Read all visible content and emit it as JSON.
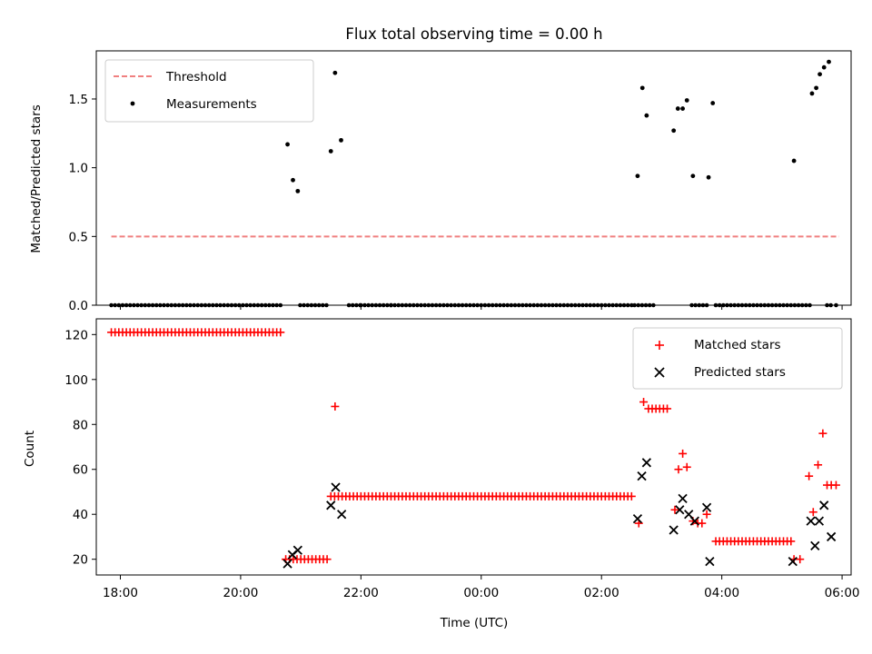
{
  "title": "Flux total observing time = 0.00 h",
  "colors": {
    "threshold": "#f08080",
    "measurements": "#000000",
    "matched": "#ff0000",
    "predicted": "#000000"
  },
  "chart_data": [
    {
      "type": "scatter",
      "ylabel": "Matched/Predicted stars",
      "ylim": [
        0,
        1.85
      ],
      "yticks": [
        0.0,
        0.5,
        1.0,
        1.5
      ],
      "xlim": [
        17.6,
        30.15
      ],
      "legend_position": "top-left",
      "threshold": {
        "name": "Threshold",
        "value": 0.5,
        "x": [
          17.85,
          29.95
        ]
      },
      "measurements": {
        "name": "Measurements",
        "zero_segments": [
          [
            17.85,
            20.7
          ],
          [
            20.99,
            21.45
          ],
          [
            21.8,
            22.0
          ],
          [
            22.0,
            22.5
          ],
          [
            22.5,
            26.5
          ],
          [
            26.55,
            26.9
          ],
          [
            27.5,
            27.75
          ],
          [
            27.9,
            29.5
          ],
          [
            29.75,
            29.85
          ],
          [
            29.9,
            29.95
          ]
        ],
        "points": [
          [
            20.78,
            1.17
          ],
          [
            20.87,
            0.91
          ],
          [
            20.95,
            0.83
          ],
          [
            21.5,
            1.12
          ],
          [
            21.57,
            1.69
          ],
          [
            21.67,
            1.2
          ],
          [
            26.6,
            0.94
          ],
          [
            26.68,
            1.58
          ],
          [
            26.75,
            1.38
          ],
          [
            27.2,
            1.27
          ],
          [
            27.27,
            1.43
          ],
          [
            27.35,
            1.43
          ],
          [
            27.42,
            1.49
          ],
          [
            27.52,
            0.94
          ],
          [
            27.78,
            0.93
          ],
          [
            27.85,
            1.47
          ],
          [
            29.2,
            1.05
          ],
          [
            29.5,
            1.54
          ],
          [
            29.57,
            1.58
          ],
          [
            29.63,
            1.68
          ],
          [
            29.7,
            1.73
          ],
          [
            29.78,
            1.77
          ]
        ]
      }
    },
    {
      "type": "scatter",
      "xlabel": "Time (UTC)",
      "ylabel": "Count",
      "ylim": [
        13,
        127
      ],
      "yticks": [
        20,
        40,
        60,
        80,
        100,
        120
      ],
      "xlim": [
        17.6,
        30.15
      ],
      "xtick_values": [
        18,
        20,
        22,
        24,
        26,
        28,
        30
      ],
      "xtick_labels": [
        "18:00",
        "20:00",
        "22:00",
        "00:00",
        "02:00",
        "04:00",
        "06:00"
      ],
      "legend_position": "top-right",
      "matched_runs": [
        {
          "from": 17.85,
          "to": 20.7,
          "y": 121
        },
        {
          "from": 20.75,
          "to": 21.45,
          "y": 20
        },
        {
          "from": 21.5,
          "to": 26.55,
          "y": 48
        },
        {
          "from": 26.78,
          "to": 27.15,
          "y": 87
        },
        {
          "from": 27.9,
          "to": 29.15,
          "y": 28
        }
      ],
      "matched": {
        "name": "Matched stars",
        "points": [
          [
            21.57,
            88
          ],
          [
            26.62,
            36
          ],
          [
            26.7,
            90
          ],
          [
            27.22,
            42
          ],
          [
            27.28,
            60
          ],
          [
            27.35,
            67
          ],
          [
            27.42,
            61
          ],
          [
            27.52,
            37
          ],
          [
            27.6,
            36
          ],
          [
            27.67,
            36
          ],
          [
            27.75,
            40
          ],
          [
            29.2,
            20
          ],
          [
            29.3,
            20
          ],
          [
            29.45,
            57
          ],
          [
            29.52,
            41
          ],
          [
            29.6,
            62
          ],
          [
            29.68,
            76
          ],
          [
            29.75,
            53
          ],
          [
            29.82,
            53
          ],
          [
            29.9,
            53
          ]
        ]
      },
      "predicted": {
        "name": "Predicted stars",
        "points": [
          [
            20.78,
            18
          ],
          [
            20.86,
            22
          ],
          [
            20.95,
            24
          ],
          [
            21.5,
            44
          ],
          [
            21.58,
            52
          ],
          [
            21.68,
            40
          ],
          [
            26.6,
            38
          ],
          [
            26.67,
            57
          ],
          [
            26.75,
            63
          ],
          [
            27.2,
            33
          ],
          [
            27.3,
            42
          ],
          [
            27.35,
            47
          ],
          [
            27.45,
            40
          ],
          [
            27.55,
            37
          ],
          [
            27.75,
            43
          ],
          [
            27.8,
            19
          ],
          [
            29.18,
            19
          ],
          [
            29.48,
            37
          ],
          [
            29.55,
            26
          ],
          [
            29.62,
            37
          ],
          [
            29.7,
            44
          ],
          [
            29.82,
            30
          ]
        ]
      }
    }
  ]
}
